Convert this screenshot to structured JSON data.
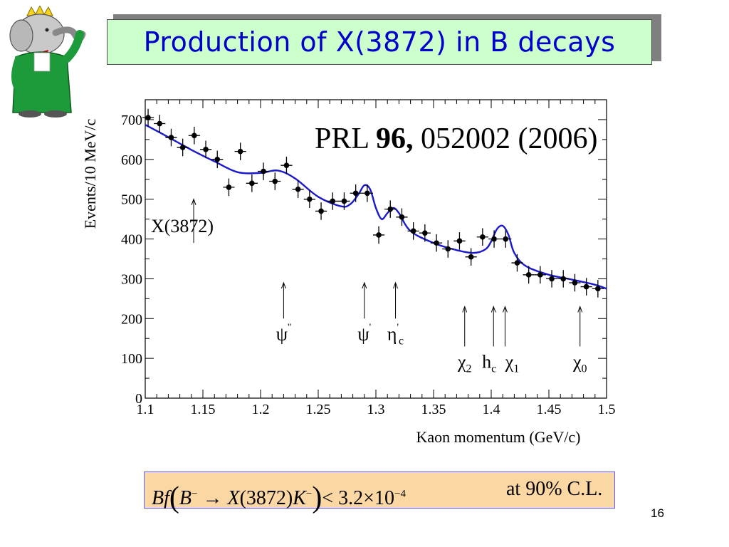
{
  "slide": {
    "title": "Production of X(3872) in B decays",
    "page_number": "16"
  },
  "formula": {
    "bf": "Bf",
    "b_meson": "B",
    "b_charge": "−",
    "arrow": "→",
    "x_state": "X",
    "x_mass": "(3872)",
    "kaon": "K",
    "kaon_charge": "−",
    "less_than": "< 3.2×10",
    "exponent": "−4",
    "confidence": "at 90% C.L."
  },
  "chart_data": {
    "type": "scatter",
    "citation": {
      "prefix": "PRL ",
      "volume": "96,",
      "suffix": " 052002 (2006)"
    },
    "xlabel": "Kaon momentum (GeV/c)",
    "ylabel": "Events/10 MeV/c",
    "xlim": [
      1.1,
      1.5
    ],
    "ylim": [
      0,
      750
    ],
    "xticks": [
      "1.1",
      "1.15",
      "1.2",
      "1.25",
      "1.3",
      "1.35",
      "1.4",
      "1.45",
      "1.5"
    ],
    "yticks": [
      "0",
      "100",
      "200",
      "300",
      "400",
      "500",
      "600",
      "700"
    ],
    "colors": {
      "fit": "#1a1acc",
      "points": "#000000"
    },
    "points": {
      "x": [
        1.1025,
        1.1125,
        1.1225,
        1.1325,
        1.1425,
        1.1525,
        1.1625,
        1.1725,
        1.1825,
        1.1925,
        1.2025,
        1.2125,
        1.2225,
        1.2325,
        1.2425,
        1.2525,
        1.2625,
        1.2725,
        1.2825,
        1.2925,
        1.3025,
        1.3125,
        1.3225,
        1.3325,
        1.3425,
        1.3525,
        1.3625,
        1.3725,
        1.3825,
        1.3925,
        1.4025,
        1.4125,
        1.4225,
        1.4325,
        1.4425,
        1.4525,
        1.4625,
        1.4725,
        1.4825,
        1.4925
      ],
      "y": [
        705,
        690,
        655,
        630,
        660,
        625,
        600,
        530,
        620,
        540,
        570,
        545,
        585,
        525,
        500,
        470,
        495,
        495,
        515,
        515,
        410,
        475,
        455,
        420,
        415,
        390,
        375,
        395,
        355,
        405,
        400,
        400,
        340,
        310,
        310,
        300,
        300,
        290,
        280,
        275
      ],
      "yerr": 22
    },
    "fit_curve": {
      "x": [
        1.1,
        1.12,
        1.14,
        1.16,
        1.18,
        1.2,
        1.215,
        1.23,
        1.25,
        1.27,
        1.278,
        1.285,
        1.29,
        1.295,
        1.3,
        1.305,
        1.31,
        1.315,
        1.32,
        1.33,
        1.35,
        1.37,
        1.385,
        1.395,
        1.4,
        1.405,
        1.41,
        1.415,
        1.42,
        1.43,
        1.45,
        1.47,
        1.49,
        1.5
      ],
      "y": [
        687,
        656,
        624,
        595,
        568,
        566,
        572,
        552,
        506,
        482,
        488,
        513,
        535,
        525,
        478,
        450,
        465,
        478,
        465,
        420,
        390,
        372,
        365,
        374,
        394,
        425,
        433,
        410,
        365,
        332,
        310,
        298,
        285,
        275
      ]
    },
    "annotations": [
      {
        "label": "X(3872)",
        "x": 1.142,
        "y_tip": 500,
        "y_base": 390
      },
      {
        "label": "ψ''",
        "x": 1.22,
        "y_tip": 290,
        "y_base": 200
      },
      {
        "label": "ψ'",
        "x": 1.29,
        "y_tip": 290,
        "y_base": 200
      },
      {
        "label": "η'c",
        "x": 1.317,
        "y_tip": 290,
        "y_base": 200
      },
      {
        "label": "χ2",
        "x": 1.377,
        "y_tip": 230,
        "y_base": 130
      },
      {
        "label": "hc",
        "x": 1.402,
        "y_tip": 230,
        "y_base": 130
      },
      {
        "label": "χ1",
        "x": 1.412,
        "y_tip": 230,
        "y_base": 130
      },
      {
        "label": "χ0",
        "x": 1.477,
        "y_tip": 230,
        "y_base": 130
      }
    ]
  }
}
